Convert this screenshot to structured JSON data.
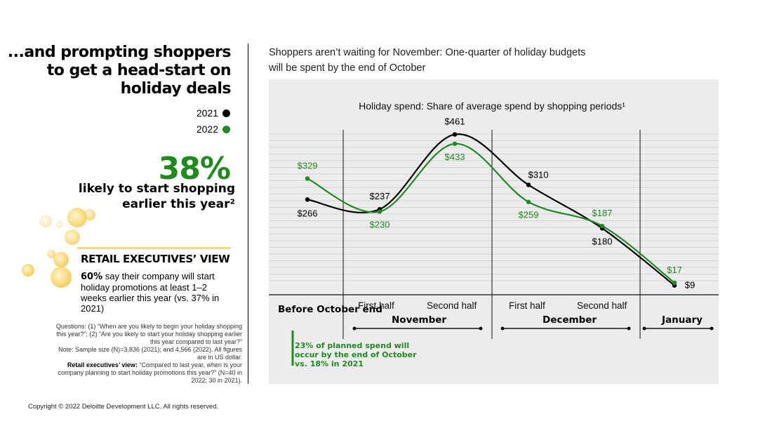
{
  "left": {
    "headline": "...and prompting shoppers to get a head-start on holiday deals",
    "legend": [
      {
        "label": "2021",
        "color": "#000000"
      },
      {
        "label": "2022",
        "color": "#1f8a1f"
      }
    ],
    "stat_value": "38%",
    "stat_text": "likely to start shopping earlier this year²",
    "exec_title": "RETAIL EXECUTIVES’ VIEW",
    "exec_bold": "60%",
    "exec_body": " say their company will start holiday promotions at least 1–2 weeks earlier this year (vs. 37% in 2021)",
    "notes_questions": "Questions: (1) “When are you likely to begin your holiday shopping this year?”; (2) “Are you likely to start your holiday shopping earlier this year compared to last year?”",
    "notes_sample": "Note: Sample size (N)=3,836 (2021); and 4,566 (2022). All figures are in US dollar.",
    "notes_exec_label": "Retail executives’ view:",
    "notes_exec_text": " “Compared to last year, when is your company planning to start holiday promotions this year?” (N=40 in 2022; 30 in 2021)."
  },
  "right": {
    "subtitle": "Shoppers aren’t waiting for November: One-quarter of holiday budgets will be spent by the end of October",
    "periods": {
      "before": "Before October end",
      "nov_first": "First half",
      "nov_second": "Second half",
      "november": "November",
      "dec_first": "First half",
      "dec_second": "Second half",
      "december": "December",
      "january": "January"
    },
    "green_note_green": "23% of planned spend",
    "green_note_rest": " will occur by the end of October vs. 18% in 2021"
  },
  "copyright": "Copyright © 2022 Deloitte Development LLC. All rights reserved.",
  "chart_data": {
    "type": "line",
    "title": "Holiday spend: Share of average spend by shopping periods¹",
    "categories": [
      "Before October end",
      "November first half",
      "November second half",
      "December first half",
      "December second half",
      "January"
    ],
    "series": [
      {
        "name": "2021",
        "color": "#000000",
        "values": [
          266,
          237,
          461,
          310,
          180,
          9
        ],
        "labels": [
          "$266",
          "$237",
          "$461",
          "$310",
          "$180",
          "$9"
        ]
      },
      {
        "name": "2022",
        "color": "#1f8a1f",
        "values": [
          329,
          230,
          433,
          259,
          187,
          17
        ],
        "labels": [
          "$329",
          "$230",
          "$433",
          "$259",
          "$187",
          "$17"
        ]
      }
    ],
    "ylim": [
      0,
      500
    ],
    "grid": true
  }
}
